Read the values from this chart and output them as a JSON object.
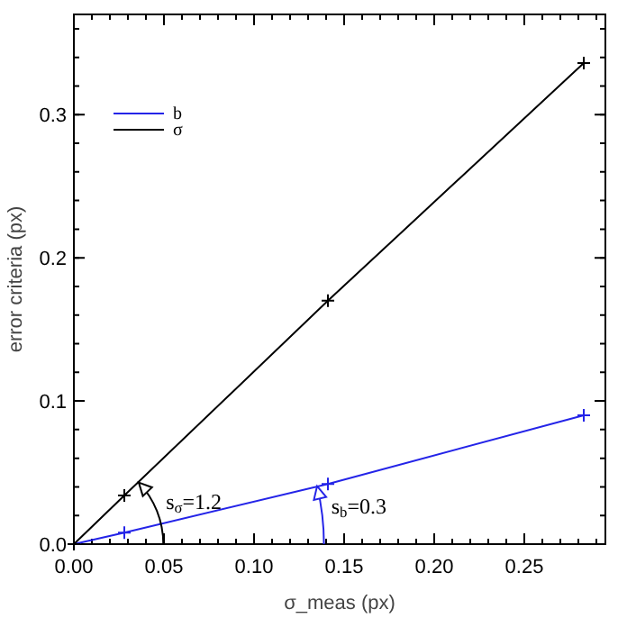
{
  "chart_data": {
    "type": "line",
    "xlabel": "σ_meas (px)",
    "ylabel": "error criteria (px)",
    "xlim": [
      0,
      0.295
    ],
    "ylim": [
      0,
      0.37
    ],
    "xticks": [
      {
        "value": 0,
        "label": "0.00"
      },
      {
        "value": 0.05,
        "label": "0.05"
      },
      {
        "value": 0.1,
        "label": "0.10"
      },
      {
        "value": 0.15,
        "label": "0.15"
      },
      {
        "value": 0.2,
        "label": "0.20"
      },
      {
        "value": 0.25,
        "label": "0.25"
      }
    ],
    "yticks": [
      {
        "value": 0,
        "label": "0.0"
      },
      0.1,
      0.2,
      0.3
    ],
    "x": [
      0,
      0.028,
      0.141,
      0.283
    ],
    "series": [
      {
        "name": "b",
        "color": "#2424e8",
        "values": [
          0,
          0.008,
          0.042,
          0.09
        ]
      },
      {
        "name": "σ",
        "color": "#000000",
        "values": [
          0,
          0.034,
          0.17,
          0.336
        ]
      }
    ],
    "marker": "cross",
    "line_style": "solid",
    "legend": "top left",
    "grid": false,
    "annotations": [
      {
        "text": "s$_{σ}$=1.2",
        "x": 0.036,
        "y": 0.043
      },
      {
        "text": "s$_{b}$=0.3",
        "x": 0.135,
        "y": 0.0405
      }
    ]
  }
}
